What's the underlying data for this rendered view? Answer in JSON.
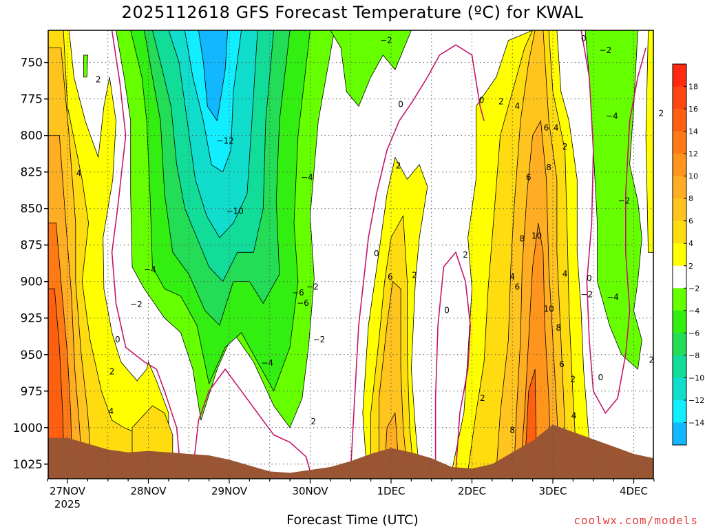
{
  "title": "2025112618 GFS Forecast Temperature (ºC) for KWAL",
  "xlabel": "Forecast Time (UTC)",
  "credit": "coolwx.com/models",
  "chart_data": {
    "type": "heatmap",
    "title": "2025112618 GFS Forecast Temperature (ºC) for KWAL",
    "xlabel": "Forecast Time (UTC)",
    "ylabel": "",
    "y_axis": {
      "ticks": [
        750,
        775,
        800,
        825,
        850,
        875,
        900,
        925,
        950,
        975,
        1000,
        1025
      ],
      "range": [
        728,
        1035
      ],
      "inverted": true
    },
    "x_axis": {
      "ticks": [
        "27NOV",
        "28NOV",
        "29NOV",
        "30NOV",
        "1DEC",
        "2DEC",
        "3DEC",
        "4DEC"
      ],
      "tick_day_index": [
        0,
        1,
        2,
        3,
        4,
        5,
        6,
        7
      ],
      "range": [
        -0.25,
        7.25
      ],
      "year_label": "2025"
    },
    "grid": true,
    "colorbar": {
      "levels": [
        18,
        16,
        14,
        12,
        10,
        8,
        6,
        4,
        2,
        -2,
        -4,
        -6,
        -8,
        -10,
        -12,
        -14
      ],
      "colors": {
        "gt18": "#ff2a10",
        "16": "#ff4510",
        "14": "#ff6010",
        "12": "#ff7a14",
        "10": "#ff951c",
        "8": "#ffad22",
        "6": "#ffc41e",
        "4": "#ffdc10",
        "2": "#ffff00",
        "0": "#ffffff",
        "m2": "#66ff00",
        "m4": "#33ee11",
        "m6": "#22dd55",
        "m8": "#11dd99",
        "m10": "#11ddcc",
        "m12": "#11eeff",
        "m14": "#11b8ff"
      }
    },
    "surface_pressure": [
      [
        0.0,
        1007
      ],
      [
        0.25,
        1011
      ],
      [
        0.5,
        1015
      ],
      [
        0.75,
        1017
      ],
      [
        1.0,
        1016
      ],
      [
        1.25,
        1017
      ],
      [
        1.5,
        1018
      ],
      [
        1.75,
        1019
      ],
      [
        2.0,
        1022
      ],
      [
        2.25,
        1026
      ],
      [
        2.5,
        1030
      ],
      [
        2.75,
        1031
      ],
      [
        3.0,
        1029
      ],
      [
        3.25,
        1027
      ],
      [
        3.5,
        1023
      ],
      [
        3.75,
        1018
      ],
      [
        4.0,
        1014
      ],
      [
        4.25,
        1017
      ],
      [
        4.5,
        1021
      ],
      [
        4.75,
        1027
      ],
      [
        5.0,
        1028
      ],
      [
        5.25,
        1025
      ],
      [
        5.5,
        1017
      ],
      [
        5.75,
        1009
      ],
      [
        6.0,
        998
      ],
      [
        6.25,
        1003
      ],
      [
        6.5,
        1008
      ],
      [
        6.75,
        1013
      ],
      [
        7.0,
        1018
      ],
      [
        7.25,
        1021
      ]
    ],
    "contour_labels": [
      {
        "day": 0.38,
        "p": 762,
        "t": 2
      },
      {
        "day": 0.14,
        "p": 826,
        "t": 4
      },
      {
        "day": 0.55,
        "p": 962,
        "t": 2
      },
      {
        "day": 0.54,
        "p": 989,
        "t": 4
      },
      {
        "day": 0.62,
        "p": 940,
        "t": 0
      },
      {
        "day": 0.85,
        "p": 916,
        "t": -2
      },
      {
        "day": 1.02,
        "p": 892,
        "t": -4
      },
      {
        "day": 1.95,
        "p": 804,
        "t": -12
      },
      {
        "day": 2.07,
        "p": 852,
        "t": -10
      },
      {
        "day": 2.47,
        "p": 956,
        "t": -4
      },
      {
        "day": 2.85,
        "p": 908,
        "t": -6
      },
      {
        "day": 2.91,
        "p": 915,
        "t": -6
      },
      {
        "day": 2.96,
        "p": 829,
        "t": -4
      },
      {
        "day": 3.03,
        "p": 904,
        "t": -2
      },
      {
        "day": 3.11,
        "p": 940,
        "t": -2
      },
      {
        "day": 3.04,
        "p": 996,
        "t": 2
      },
      {
        "day": 3.82,
        "p": 881,
        "t": 0
      },
      {
        "day": 3.99,
        "p": 897,
        "t": 6
      },
      {
        "day": 4.29,
        "p": 896,
        "t": 2
      },
      {
        "day": 4.09,
        "p": 821,
        "t": 2
      },
      {
        "day": 4.12,
        "p": 779,
        "t": 0
      },
      {
        "day": 3.94,
        "p": 735,
        "t": -2
      },
      {
        "day": 4.92,
        "p": 882,
        "t": 2
      },
      {
        "day": 4.69,
        "p": 920,
        "t": 0
      },
      {
        "day": 5.12,
        "p": 776,
        "t": 0
      },
      {
        "day": 5.36,
        "p": 777,
        "t": 2
      },
      {
        "day": 5.56,
        "p": 780,
        "t": 4
      },
      {
        "day": 5.5,
        "p": 897,
        "t": 4
      },
      {
        "day": 5.56,
        "p": 904,
        "t": 6
      },
      {
        "day": 5.7,
        "p": 829,
        "t": 6
      },
      {
        "day": 5.62,
        "p": 871,
        "t": 8
      },
      {
        "day": 5.8,
        "p": 869,
        "t": 10
      },
      {
        "day": 5.92,
        "p": 795,
        "t": 6
      },
      {
        "day": 6.04,
        "p": 795,
        "t": 4
      },
      {
        "day": 5.95,
        "p": 822,
        "t": 8
      },
      {
        "day": 6.15,
        "p": 808,
        "t": 2
      },
      {
        "day": 6.15,
        "p": 895,
        "t": 4
      },
      {
        "day": 5.95,
        "p": 919,
        "t": 10
      },
      {
        "day": 6.07,
        "p": 932,
        "t": 8
      },
      {
        "day": 6.11,
        "p": 957,
        "t": 6
      },
      {
        "day": 6.25,
        "p": 967,
        "t": 2
      },
      {
        "day": 6.26,
        "p": 992,
        "t": 4
      },
      {
        "day": 5.13,
        "p": 980,
        "t": 2
      },
      {
        "day": 5.5,
        "p": 1002,
        "t": 8
      },
      {
        "day": 6.45,
        "p": 898,
        "t": 0
      },
      {
        "day": 6.42,
        "p": 909,
        "t": -2
      },
      {
        "day": 6.74,
        "p": 911,
        "t": -4
      },
      {
        "day": 6.73,
        "p": 787,
        "t": -4
      },
      {
        "day": 6.88,
        "p": 845,
        "t": -2
      },
      {
        "day": 6.59,
        "p": 966,
        "t": 0
      },
      {
        "day": 7.22,
        "p": 954,
        "t": 2
      },
      {
        "day": 7.34,
        "p": 785,
        "t": 2
      },
      {
        "day": 6.65,
        "p": 742,
        "t": -2
      },
      {
        "day": 6.38,
        "p": 734,
        "t": 0
      }
    ]
  }
}
